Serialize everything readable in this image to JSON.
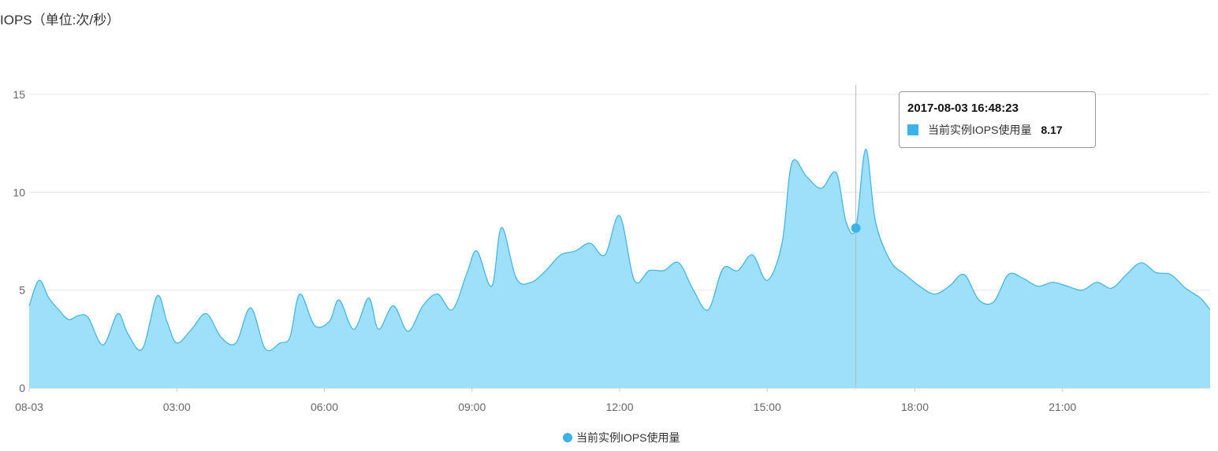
{
  "title": "IOPS（单位:次/秒）",
  "colors": {
    "line": "#3bb3e8",
    "fill": "#9edff9",
    "grid": "#e6e6e6",
    "axis": "#cccccc",
    "crosshair": "#bbbbbb"
  },
  "tooltip": {
    "time": "2017-08-03 16:48:23",
    "series": "当前实例IOPS使用量",
    "value": "8.17",
    "hour": 16.8
  },
  "legend": {
    "label": "当前实例IOPS使用量",
    "position": "bottom-center"
  },
  "chart_data": {
    "type": "area",
    "x_range_hours": [
      0,
      24
    ],
    "xtick_hours": [
      0,
      3,
      6,
      9,
      12,
      15,
      18,
      21
    ],
    "xtick_labels": [
      "08-03",
      "03:00",
      "06:00",
      "09:00",
      "12:00",
      "15:00",
      "18:00",
      "21:00"
    ],
    "ylim": [
      0,
      16
    ],
    "yticks": [
      0,
      5,
      10,
      15
    ],
    "grid": true,
    "series": [
      {
        "name": "当前实例IOPS使用量",
        "points": [
          [
            0.0,
            4.2
          ],
          [
            0.2,
            5.5
          ],
          [
            0.4,
            4.6
          ],
          [
            0.6,
            4.0
          ],
          [
            0.8,
            3.5
          ],
          [
            1.0,
            3.7
          ],
          [
            1.2,
            3.6
          ],
          [
            1.5,
            2.2
          ],
          [
            1.8,
            3.8
          ],
          [
            2.0,
            2.8
          ],
          [
            2.3,
            2.0
          ],
          [
            2.6,
            4.7
          ],
          [
            2.8,
            3.4
          ],
          [
            3.0,
            2.3
          ],
          [
            3.3,
            3.0
          ],
          [
            3.6,
            3.8
          ],
          [
            3.9,
            2.6
          ],
          [
            4.2,
            2.3
          ],
          [
            4.5,
            4.1
          ],
          [
            4.8,
            2.0
          ],
          [
            5.1,
            2.3
          ],
          [
            5.3,
            2.6
          ],
          [
            5.5,
            4.8
          ],
          [
            5.8,
            3.2
          ],
          [
            6.1,
            3.4
          ],
          [
            6.3,
            4.5
          ],
          [
            6.6,
            3.0
          ],
          [
            6.9,
            4.6
          ],
          [
            7.1,
            3.0
          ],
          [
            7.4,
            4.2
          ],
          [
            7.7,
            2.9
          ],
          [
            8.0,
            4.2
          ],
          [
            8.3,
            4.8
          ],
          [
            8.6,
            4.0
          ],
          [
            8.9,
            5.9
          ],
          [
            9.1,
            7.0
          ],
          [
            9.4,
            5.2
          ],
          [
            9.6,
            8.2
          ],
          [
            9.9,
            5.6
          ],
          [
            10.2,
            5.4
          ],
          [
            10.5,
            6.0
          ],
          [
            10.8,
            6.8
          ],
          [
            11.1,
            7.0
          ],
          [
            11.4,
            7.4
          ],
          [
            11.7,
            6.8
          ],
          [
            12.0,
            8.8
          ],
          [
            12.3,
            5.5
          ],
          [
            12.6,
            6.0
          ],
          [
            12.9,
            6.0
          ],
          [
            13.2,
            6.4
          ],
          [
            13.5,
            5.0
          ],
          [
            13.8,
            4.0
          ],
          [
            14.1,
            6.1
          ],
          [
            14.4,
            6.0
          ],
          [
            14.7,
            6.8
          ],
          [
            15.0,
            5.5
          ],
          [
            15.3,
            7.4
          ],
          [
            15.5,
            11.5
          ],
          [
            15.8,
            10.8
          ],
          [
            16.1,
            10.2
          ],
          [
            16.4,
            11.0
          ],
          [
            16.6,
            8.5
          ],
          [
            16.8,
            8.17
          ],
          [
            17.0,
            12.2
          ],
          [
            17.2,
            8.5
          ],
          [
            17.5,
            6.5
          ],
          [
            17.8,
            5.8
          ],
          [
            18.1,
            5.2
          ],
          [
            18.4,
            4.8
          ],
          [
            18.7,
            5.2
          ],
          [
            19.0,
            5.8
          ],
          [
            19.3,
            4.5
          ],
          [
            19.6,
            4.4
          ],
          [
            19.9,
            5.8
          ],
          [
            20.2,
            5.6
          ],
          [
            20.5,
            5.2
          ],
          [
            20.8,
            5.4
          ],
          [
            21.1,
            5.2
          ],
          [
            21.4,
            5.0
          ],
          [
            21.7,
            5.4
          ],
          [
            22.0,
            5.1
          ],
          [
            22.3,
            5.8
          ],
          [
            22.6,
            6.4
          ],
          [
            22.9,
            5.9
          ],
          [
            23.2,
            5.8
          ],
          [
            23.5,
            5.1
          ],
          [
            23.8,
            4.6
          ],
          [
            24.0,
            4.0
          ]
        ]
      }
    ]
  }
}
